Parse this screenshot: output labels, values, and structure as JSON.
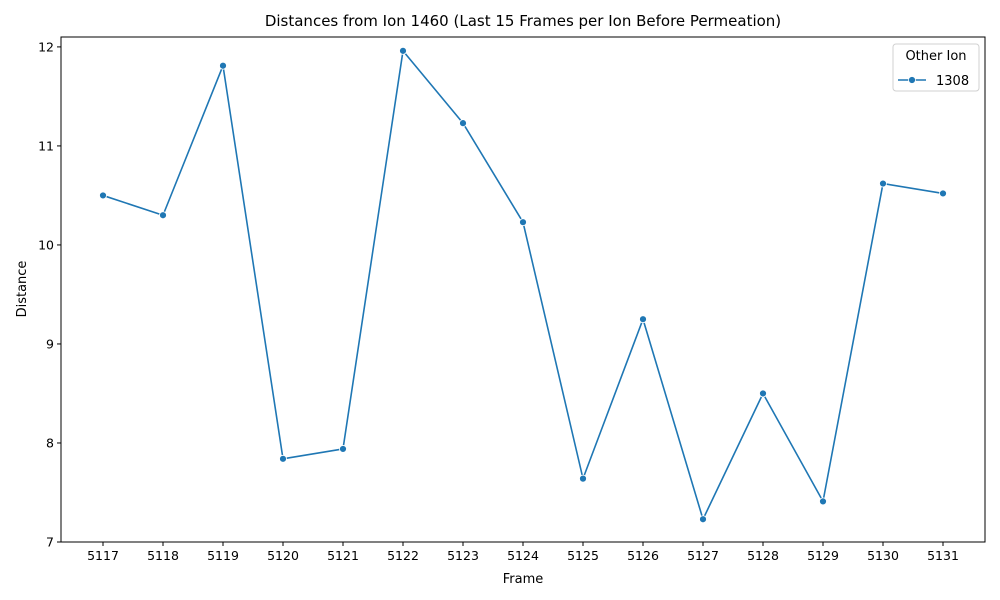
{
  "chart_data": {
    "type": "line",
    "title": "Distances from Ion 1460 (Last 15 Frames per Ion Before Permeation)",
    "xlabel": "Frame",
    "ylabel": "Distance",
    "x": [
      5117,
      5118,
      5119,
      5120,
      5121,
      5122,
      5123,
      5124,
      5125,
      5126,
      5127,
      5128,
      5129,
      5130,
      5131
    ],
    "xticks": [
      "5117",
      "5118",
      "5119",
      "5120",
      "5121",
      "5122",
      "5123",
      "5124",
      "5125",
      "5126",
      "5127",
      "5128",
      "5129",
      "5130",
      "5131"
    ],
    "yticks": [
      "7",
      "8",
      "9",
      "10",
      "11",
      "12"
    ],
    "ylim": [
      7,
      12.1
    ],
    "grid": false,
    "legend": {
      "title": "Other Ion",
      "placement": "top-right"
    },
    "series": [
      {
        "name": "1308",
        "color": "#1f77b4",
        "marker": "circle",
        "values": [
          10.5,
          10.3,
          11.81,
          7.84,
          7.94,
          11.96,
          11.23,
          10.23,
          7.64,
          9.25,
          7.23,
          8.5,
          7.41,
          10.62,
          10.52
        ]
      }
    ]
  }
}
